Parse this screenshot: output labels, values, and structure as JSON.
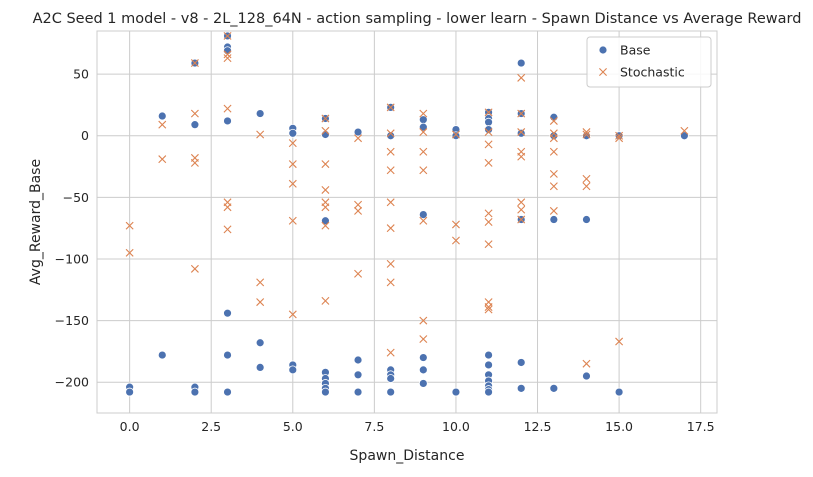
{
  "chart_data": {
    "type": "scatter",
    "title": "A2C Seed 1 model - v8 - 2L_128_64N - action sampling - lower learn - Spawn Distance vs Average Reward",
    "xlabel": "Spawn_Distance",
    "ylabel": "Avg_Reward_Base",
    "xlim": [
      -1,
      18
    ],
    "ylim": [
      -225,
      85
    ],
    "xticks": [
      0.0,
      2.5,
      5.0,
      7.5,
      10.0,
      12.5,
      15.0,
      17.5
    ],
    "xtick_labels": [
      "0.0",
      "2.5",
      "5.0",
      "7.5",
      "10.0",
      "12.5",
      "15.0",
      "17.5"
    ],
    "yticks": [
      -200,
      -150,
      -100,
      -50,
      0,
      50
    ],
    "ytick_labels": [
      "−200",
      "−150",
      "−100",
      "−50",
      "0",
      "50"
    ],
    "grid": true,
    "legend_position": "top-right",
    "series": [
      {
        "name": "Base",
        "marker": "circle",
        "color": "#4c72b0",
        "points": [
          [
            0,
            -204
          ],
          [
            0,
            -208
          ],
          [
            1,
            16
          ],
          [
            1,
            -178
          ],
          [
            2,
            59
          ],
          [
            2,
            9
          ],
          [
            2,
            -204
          ],
          [
            2,
            -208
          ],
          [
            3,
            81
          ],
          [
            3,
            72
          ],
          [
            3,
            69
          ],
          [
            3,
            12
          ],
          [
            3,
            -144
          ],
          [
            3,
            -178
          ],
          [
            3,
            -208
          ],
          [
            4,
            18
          ],
          [
            4,
            -168
          ],
          [
            4,
            -188
          ],
          [
            5,
            6
          ],
          [
            5,
            2
          ],
          [
            5,
            -186
          ],
          [
            5,
            -190
          ],
          [
            6,
            14
          ],
          [
            6,
            1
          ],
          [
            6,
            -69
          ],
          [
            6,
            -192
          ],
          [
            6,
            -197
          ],
          [
            6,
            -201
          ],
          [
            6,
            -205
          ],
          [
            6,
            -208
          ],
          [
            7,
            3
          ],
          [
            7,
            -182
          ],
          [
            7,
            -194
          ],
          [
            7,
            -208
          ],
          [
            8,
            23
          ],
          [
            8,
            0
          ],
          [
            8,
            -190
          ],
          [
            8,
            -194
          ],
          [
            8,
            -197
          ],
          [
            8,
            -208
          ],
          [
            9,
            13
          ],
          [
            9,
            7
          ],
          [
            9,
            -64
          ],
          [
            9,
            -180
          ],
          [
            9,
            -190
          ],
          [
            9,
            -201
          ],
          [
            10,
            5
          ],
          [
            10,
            0
          ],
          [
            10,
            -208
          ],
          [
            11,
            19
          ],
          [
            11,
            14
          ],
          [
            11,
            11
          ],
          [
            11,
            5
          ],
          [
            11,
            -178
          ],
          [
            11,
            -186
          ],
          [
            11,
            -194
          ],
          [
            11,
            -199
          ],
          [
            11,
            -203
          ],
          [
            11,
            -206
          ],
          [
            11,
            -208
          ],
          [
            12,
            59
          ],
          [
            12,
            18
          ],
          [
            12,
            2
          ],
          [
            12,
            -68
          ],
          [
            12,
            -184
          ],
          [
            12,
            -205
          ],
          [
            13,
            15
          ],
          [
            13,
            0
          ],
          [
            13,
            -68
          ],
          [
            13,
            -205
          ],
          [
            14,
            0
          ],
          [
            14,
            -68
          ],
          [
            14,
            -195
          ],
          [
            15,
            0
          ],
          [
            15,
            -208
          ],
          [
            17,
            0
          ]
        ]
      },
      {
        "name": "Stochastic",
        "marker": "x",
        "color": "#dd8452",
        "points": [
          [
            0,
            -73
          ],
          [
            0,
            -95
          ],
          [
            1,
            9
          ],
          [
            1,
            -19
          ],
          [
            2,
            59
          ],
          [
            2,
            18
          ],
          [
            2,
            -18
          ],
          [
            2,
            -22
          ],
          [
            2,
            -108
          ],
          [
            3,
            81
          ],
          [
            3,
            66
          ],
          [
            3,
            63
          ],
          [
            3,
            22
          ],
          [
            3,
            -54
          ],
          [
            3,
            -58
          ],
          [
            3,
            -76
          ],
          [
            4,
            1
          ],
          [
            4,
            -119
          ],
          [
            4,
            -135
          ],
          [
            5,
            -6
          ],
          [
            5,
            -23
          ],
          [
            5,
            -39
          ],
          [
            5,
            -69
          ],
          [
            5,
            -145
          ],
          [
            6,
            14
          ],
          [
            6,
            4
          ],
          [
            6,
            -23
          ],
          [
            6,
            -44
          ],
          [
            6,
            -54
          ],
          [
            6,
            -58
          ],
          [
            6,
            -73
          ],
          [
            6,
            -134
          ],
          [
            7,
            -2
          ],
          [
            7,
            -56
          ],
          [
            7,
            -61
          ],
          [
            7,
            -112
          ],
          [
            8,
            23
          ],
          [
            8,
            2
          ],
          [
            8,
            -13
          ],
          [
            8,
            -28
          ],
          [
            8,
            -54
          ],
          [
            8,
            -75
          ],
          [
            8,
            -104
          ],
          [
            8,
            -119
          ],
          [
            8,
            -176
          ],
          [
            9,
            18
          ],
          [
            9,
            3
          ],
          [
            9,
            -13
          ],
          [
            9,
            -28
          ],
          [
            9,
            -69
          ],
          [
            9,
            -150
          ],
          [
            9,
            -165
          ],
          [
            10,
            1
          ],
          [
            10,
            -72
          ],
          [
            10,
            -85
          ],
          [
            11,
            19
          ],
          [
            11,
            3
          ],
          [
            11,
            -7
          ],
          [
            11,
            -22
          ],
          [
            11,
            -63
          ],
          [
            11,
            -70
          ],
          [
            11,
            -88
          ],
          [
            11,
            -135
          ],
          [
            11,
            -139
          ],
          [
            11,
            -141
          ],
          [
            12,
            47
          ],
          [
            12,
            18
          ],
          [
            12,
            3
          ],
          [
            12,
            -13
          ],
          [
            12,
            -17
          ],
          [
            12,
            -54
          ],
          [
            12,
            -60
          ],
          [
            12,
            -68
          ],
          [
            13,
            12
          ],
          [
            13,
            2
          ],
          [
            13,
            -2
          ],
          [
            13,
            -13
          ],
          [
            13,
            -31
          ],
          [
            13,
            -41
          ],
          [
            13,
            -61
          ],
          [
            14,
            3
          ],
          [
            14,
            1
          ],
          [
            14,
            -35
          ],
          [
            14,
            -41
          ],
          [
            14,
            -185
          ],
          [
            15,
            0
          ],
          [
            15,
            -2
          ],
          [
            15,
            -167
          ],
          [
            17,
            4
          ]
        ]
      }
    ]
  }
}
